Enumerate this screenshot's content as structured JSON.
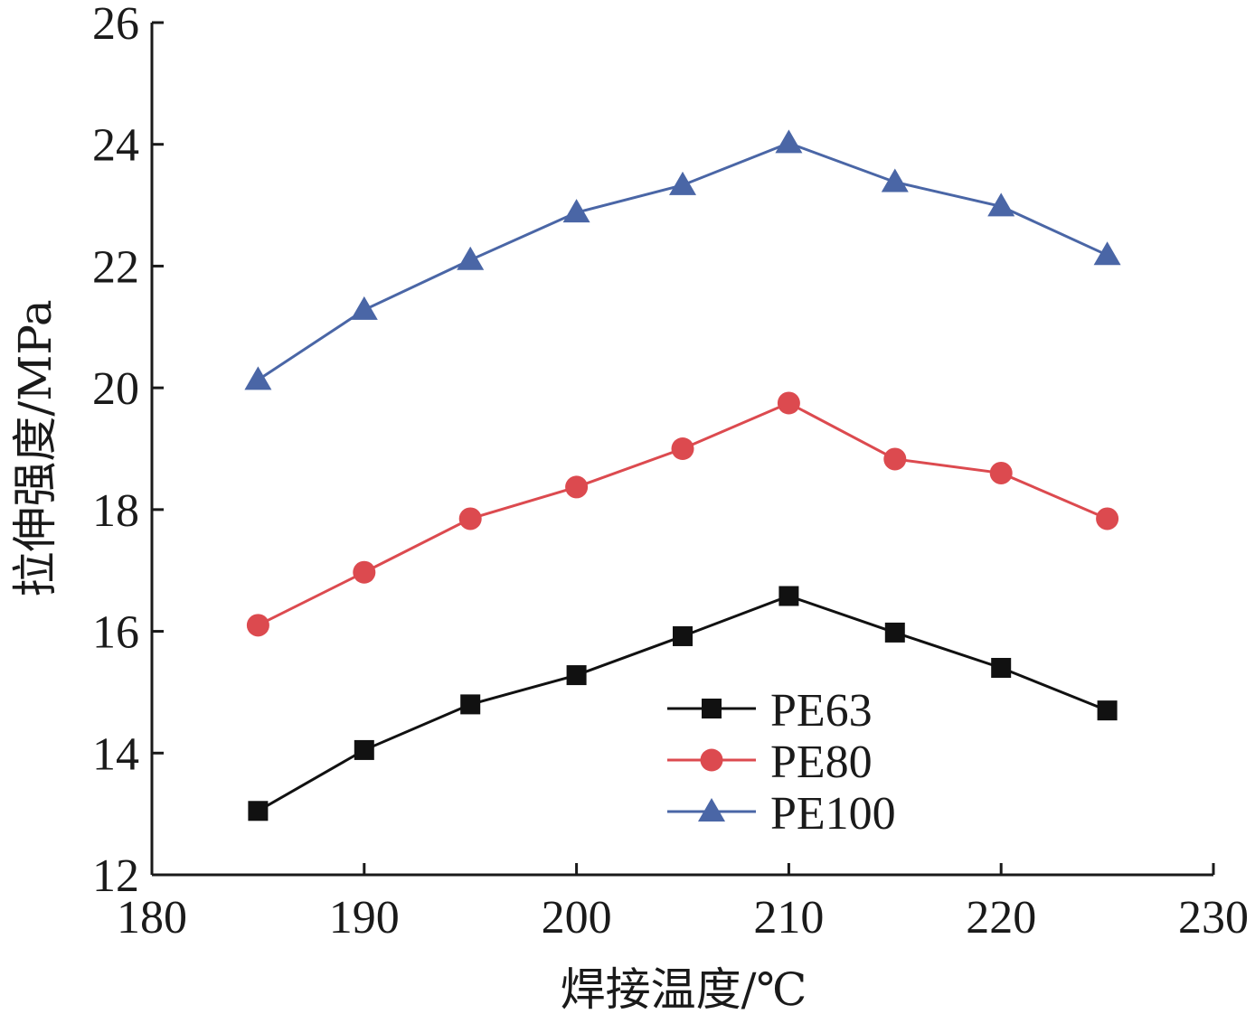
{
  "chart_data": {
    "type": "line",
    "title": "",
    "xlabel": "焊接温度/℃",
    "ylabel": "拉伸强度/MPa",
    "xlim": [
      180,
      230
    ],
    "ylim": [
      12,
      26
    ],
    "xticks": [
      "180",
      "190",
      "200",
      "210",
      "220",
      "230"
    ],
    "yticks": [
      "12",
      "14",
      "16",
      "18",
      "20",
      "22",
      "24",
      "26"
    ],
    "x": [
      185,
      190,
      195,
      200,
      205,
      210,
      215,
      220,
      225
    ],
    "grid": false,
    "legend_position": "center-right",
    "series": [
      {
        "name": "PE63",
        "marker": "square",
        "color": "#111111",
        "values": [
          13.05,
          14.05,
          14.8,
          15.28,
          15.92,
          16.58,
          15.98,
          15.4,
          14.7
        ]
      },
      {
        "name": "PE80",
        "marker": "circle",
        "color": "#dc4a4f",
        "values": [
          16.1,
          16.97,
          17.85,
          18.37,
          19.0,
          19.75,
          18.83,
          18.6,
          17.85
        ]
      },
      {
        "name": "PE100",
        "marker": "triangle",
        "color": "#4a66a6",
        "values": [
          20.13,
          21.28,
          22.1,
          22.88,
          23.33,
          24.02,
          23.38,
          22.98,
          22.18
        ]
      }
    ]
  }
}
